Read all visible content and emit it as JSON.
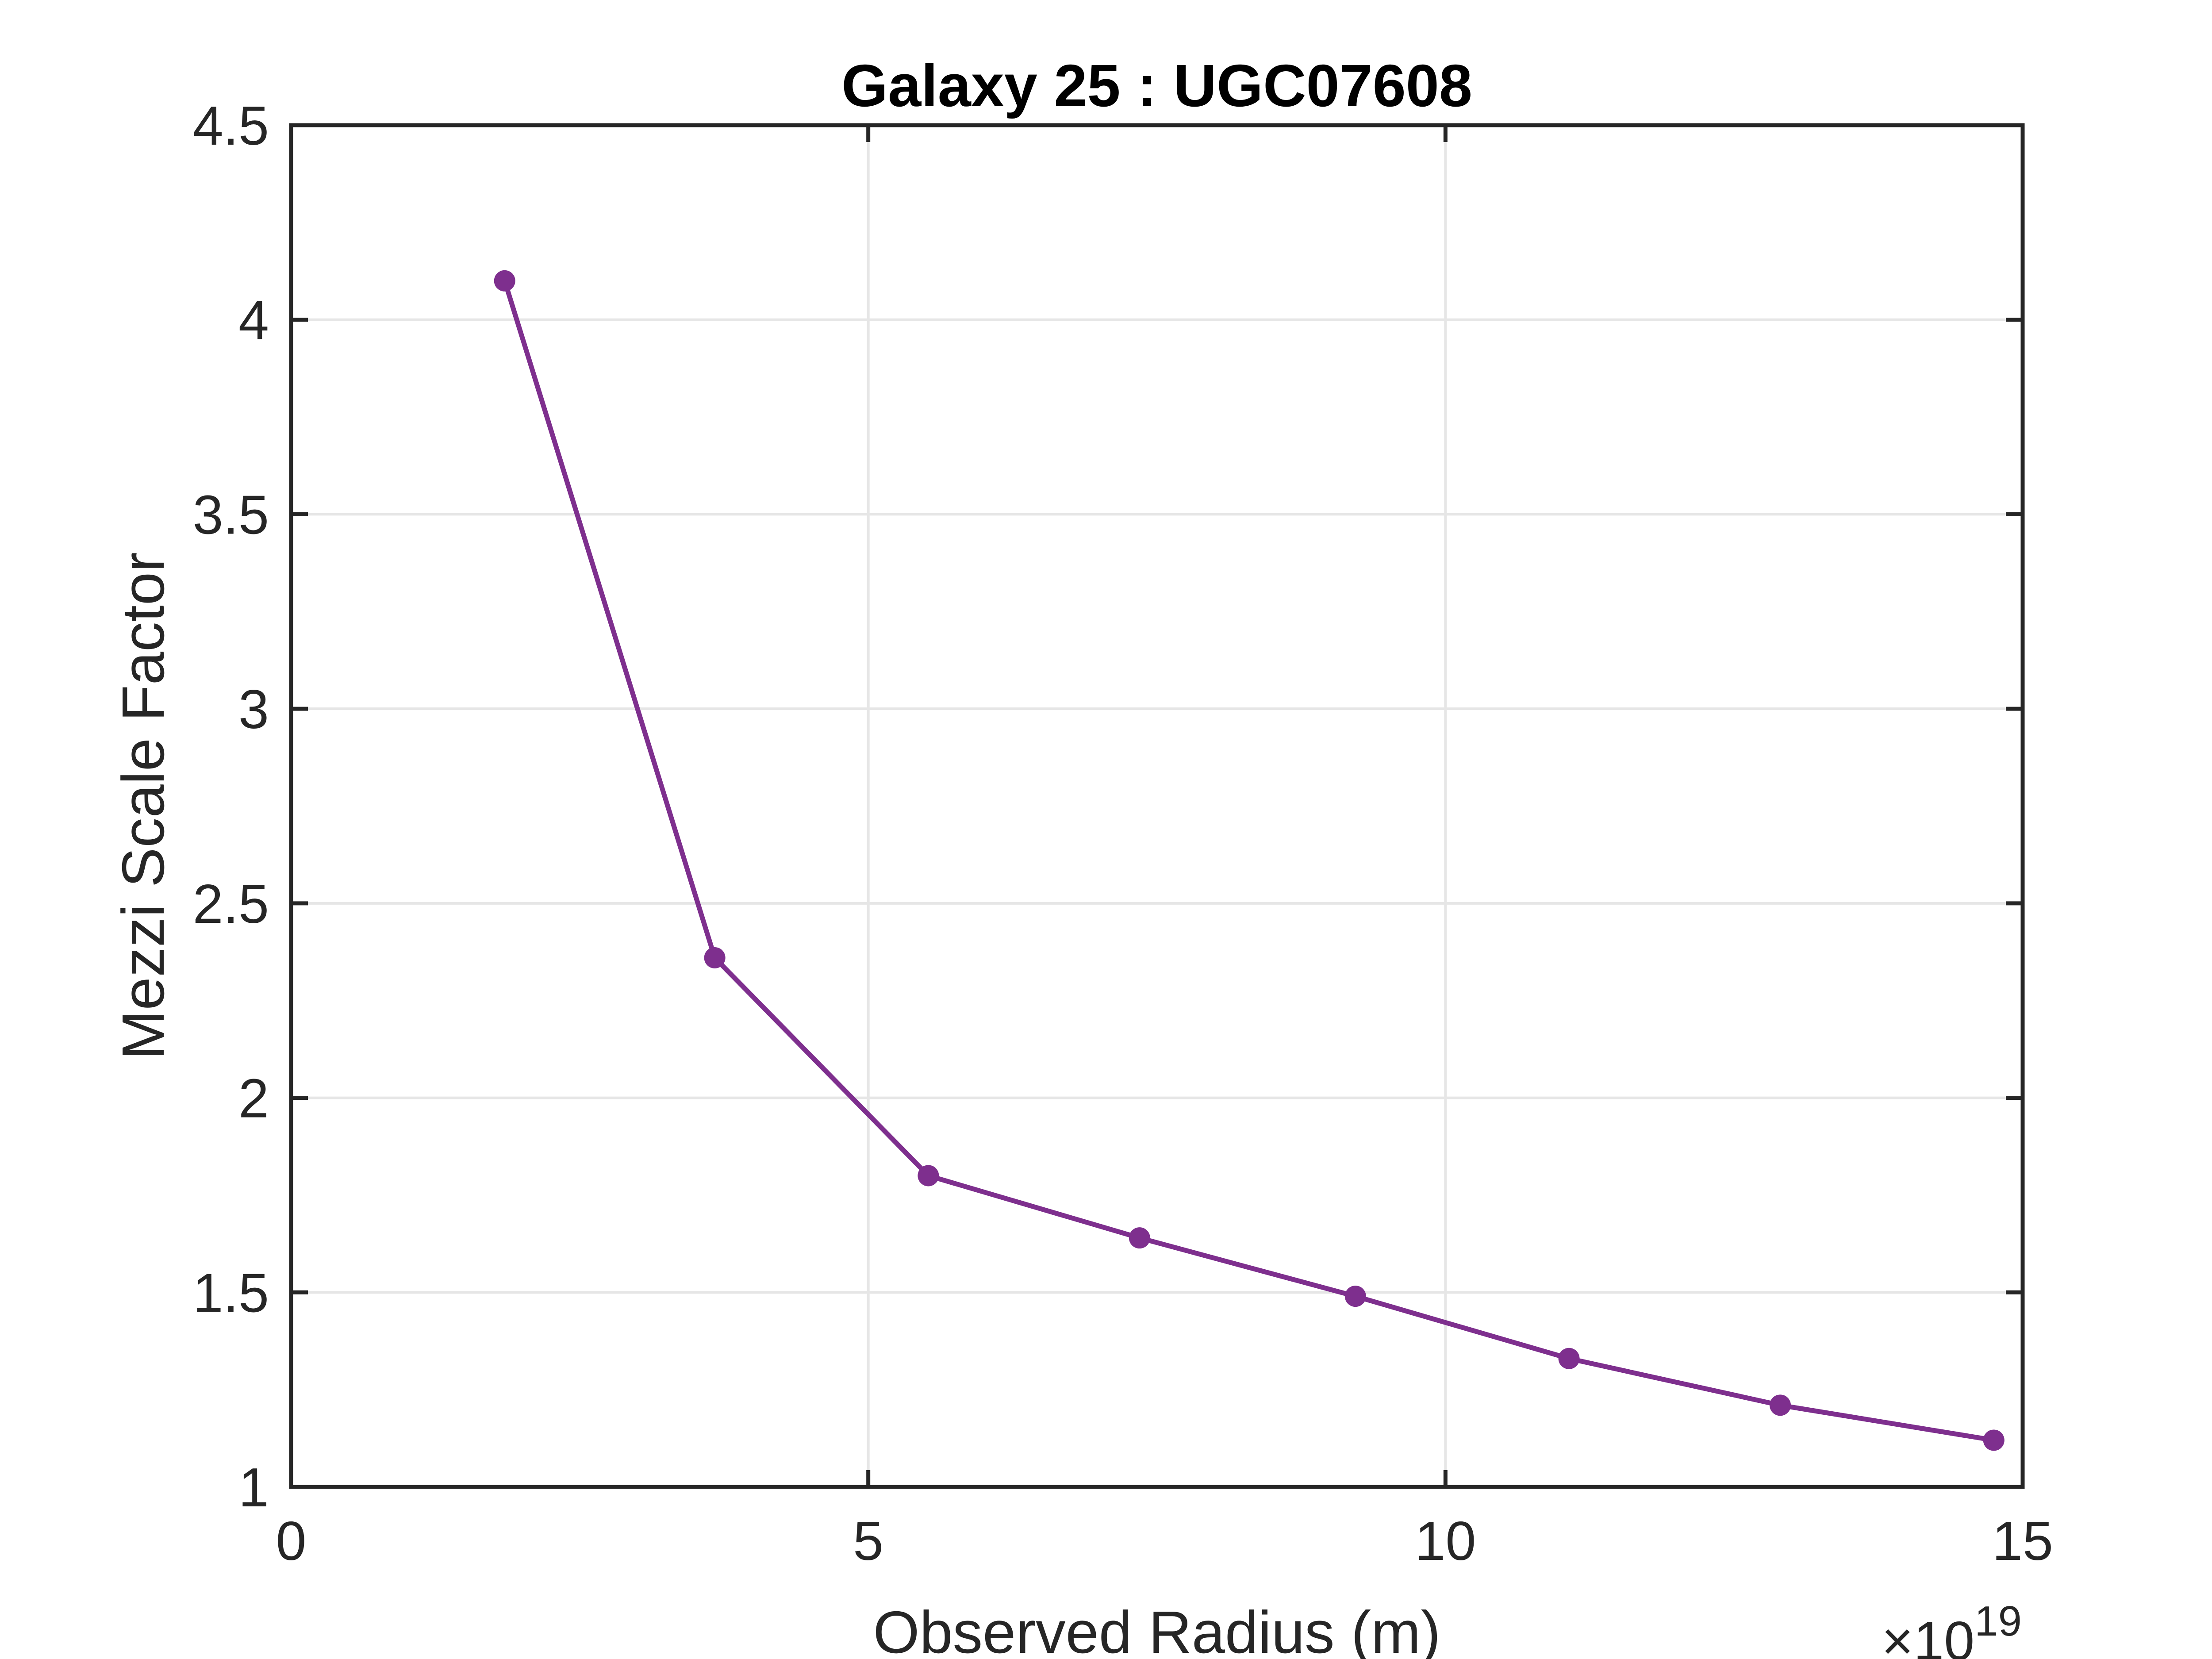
{
  "chart_data": {
    "type": "line",
    "title": "Galaxy 25 : UGC07608",
    "xlabel": "Observed Radius (m)",
    "ylabel": "Mezzi Scale Factor",
    "x_multiplier": {
      "base": "×10",
      "exponent": "19"
    },
    "xlim": [
      0,
      15
    ],
    "ylim": [
      1,
      4.5
    ],
    "grid": true,
    "x_ticks": [
      0,
      5,
      10,
      15
    ],
    "x_tick_labels": [
      "0",
      "5",
      "10",
      "15"
    ],
    "y_ticks": [
      1,
      1.5,
      2,
      2.5,
      3,
      3.5,
      4,
      4.5
    ],
    "y_tick_labels": [
      "1",
      "1.5",
      "2",
      "2.5",
      "3",
      "3.5",
      "4",
      "4.5"
    ],
    "series": [
      {
        "name": "UGC07608",
        "color": "#7E2F8E",
        "marker": "circle",
        "x": [
          1.85,
          3.67,
          5.52,
          7.35,
          9.22,
          11.07,
          12.9,
          14.75
        ],
        "y": [
          4.1,
          2.36,
          1.8,
          1.64,
          1.49,
          1.33,
          1.21,
          1.12
        ]
      }
    ]
  },
  "colors": {
    "axis": "#262626",
    "grid": "#e6e6e6",
    "series": "#7E2F8E"
  }
}
